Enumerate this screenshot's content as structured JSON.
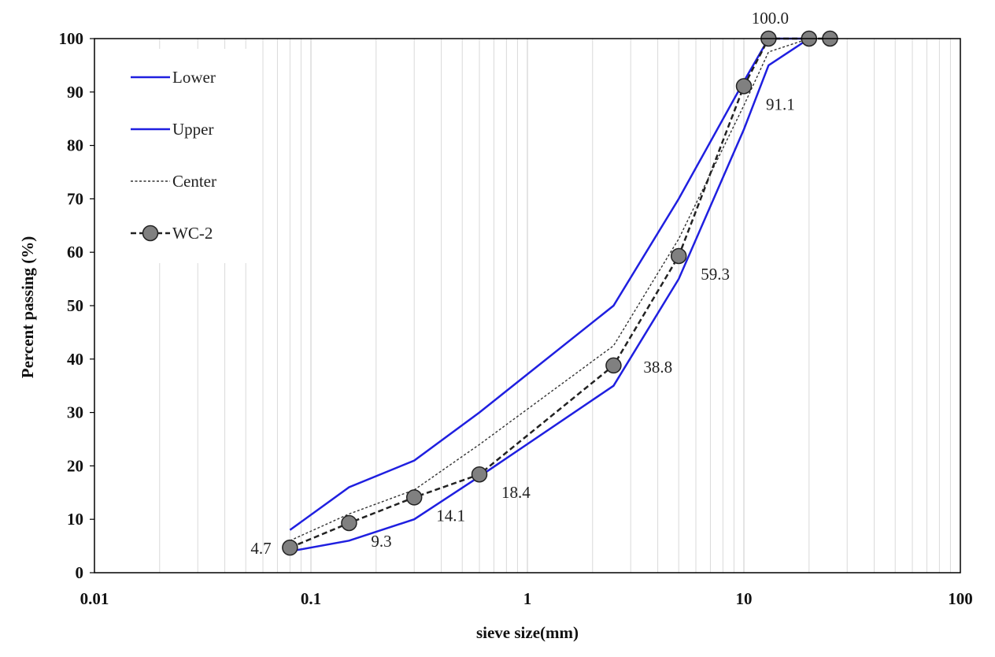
{
  "chart_data": {
    "type": "line",
    "x_scale": "log",
    "xlabel": "sieve size(mm)",
    "ylabel": "Percent passing (%)",
    "xlim": [
      0.01,
      100
    ],
    "ylim": [
      0,
      100
    ],
    "x_ticks": [
      0.01,
      0.1,
      1,
      10,
      100
    ],
    "x_tick_labels": [
      "0.01",
      "0.1",
      "1",
      "10",
      "100"
    ],
    "y_ticks": [
      0,
      10,
      20,
      30,
      40,
      50,
      60,
      70,
      80,
      90,
      100
    ],
    "y_tick_labels": [
      "0",
      "10",
      "20",
      "30",
      "40",
      "50",
      "60",
      "70",
      "80",
      "90",
      "100"
    ],
    "grid": "vertical-log",
    "legend_position": "top-left",
    "series": [
      {
        "name": "Lower",
        "style": "solid",
        "color": "#1f1fe0",
        "x": [
          0.08,
          0.15,
          0.3,
          0.6,
          2.5,
          5,
          10,
          13,
          20
        ],
        "y": [
          4,
          6,
          10,
          18,
          35,
          55,
          83,
          95,
          100
        ]
      },
      {
        "name": "Upper",
        "style": "solid",
        "color": "#1f1fe0",
        "x": [
          0.08,
          0.15,
          0.3,
          0.6,
          2.5,
          5,
          10,
          13,
          20
        ],
        "y": [
          8,
          16,
          21,
          30,
          50,
          70,
          92,
          100,
          100
        ]
      },
      {
        "name": "Center",
        "style": "dotted",
        "color": "#333333",
        "x": [
          0.08,
          0.15,
          0.3,
          0.6,
          2.5,
          5,
          10,
          13,
          20
        ],
        "y": [
          6,
          11,
          15.5,
          24,
          42.5,
          62.5,
          87.5,
          97.5,
          100
        ]
      },
      {
        "name": "WC-2",
        "style": "dashed-marker",
        "color": "#222222",
        "marker_color": "#808080",
        "x": [
          0.08,
          0.15,
          0.3,
          0.6,
          2.5,
          5,
          10,
          13,
          20,
          25
        ],
        "y": [
          4.7,
          9.3,
          14.1,
          18.4,
          38.8,
          59.3,
          91.1,
          100,
          100,
          100
        ]
      }
    ],
    "annotations": [
      {
        "text": "4.7",
        "x": 0.08,
        "y": 4.7,
        "pos": "left"
      },
      {
        "text": "9.3",
        "x": 0.15,
        "y": 9.3,
        "pos": "below-right"
      },
      {
        "text": "14.1",
        "x": 0.3,
        "y": 14.1,
        "pos": "below-right"
      },
      {
        "text": "18.4",
        "x": 0.6,
        "y": 18.4,
        "pos": "below-right"
      },
      {
        "text": "38.8",
        "x": 2.5,
        "y": 38.8,
        "pos": "right"
      },
      {
        "text": "59.3",
        "x": 5,
        "y": 59.3,
        "pos": "below-right"
      },
      {
        "text": "91.1",
        "x": 10,
        "y": 91.1,
        "pos": "below-right"
      },
      {
        "text": "100.0",
        "x": 13,
        "y": 100,
        "pos": "above"
      }
    ]
  }
}
